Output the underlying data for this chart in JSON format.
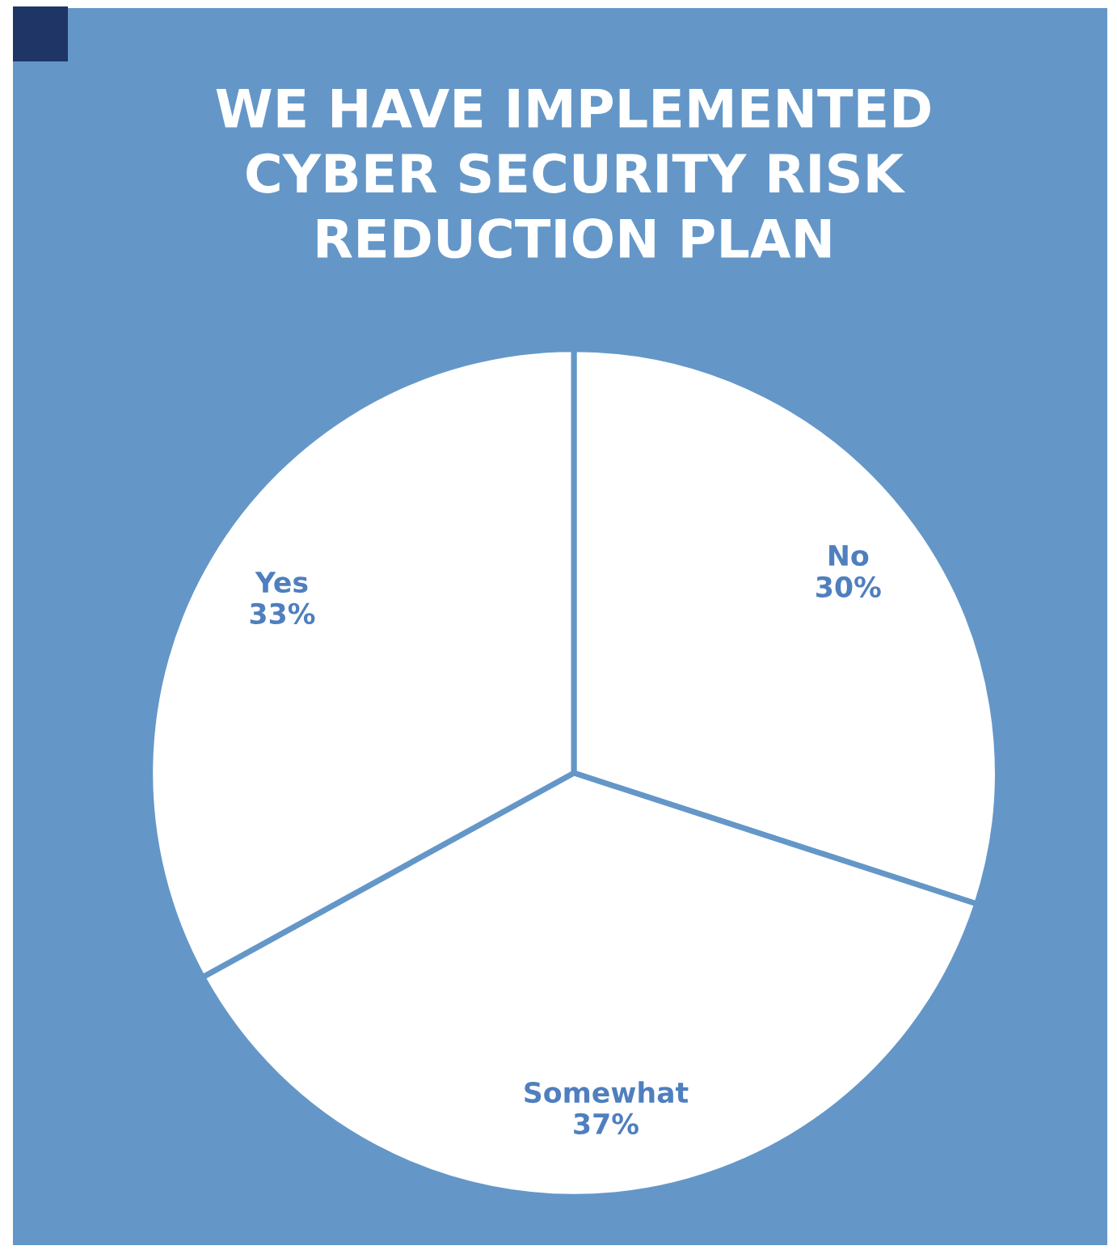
{
  "chart_data": {
    "type": "pie",
    "title": "WE HAVE IMPLEMENTED\nCYBER SECURITY RISK\nREDUCTION PLAN",
    "categories": [
      "No",
      "Somewhat",
      "Yes"
    ],
    "values": [
      30,
      37,
      33
    ],
    "value_labels": [
      "30%",
      "37%",
      "33%"
    ],
    "colors": [
      "#ffffff",
      "#ffffff",
      "#ffffff"
    ],
    "legend": false
  }
}
